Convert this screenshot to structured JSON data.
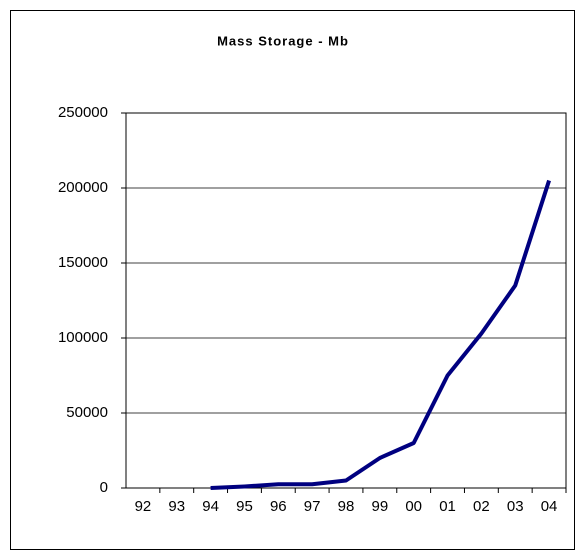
{
  "chart_data": {
    "type": "line",
    "title": "Mass Storage - Mb",
    "categories": [
      "92",
      "93",
      "94",
      "95",
      "96",
      "97",
      "98",
      "99",
      "00",
      "01",
      "02",
      "03",
      "04"
    ],
    "series": [
      {
        "name": "Mass Storage",
        "color": "#000080",
        "values": [
          null,
          null,
          0,
          1000,
          2500,
          2500,
          5000,
          20000,
          30000,
          75000,
          103000,
          135000,
          205000
        ]
      }
    ],
    "ylim": [
      0,
      250000
    ],
    "yticks": [
      0,
      50000,
      100000,
      150000,
      200000,
      250000
    ],
    "grid": true
  }
}
